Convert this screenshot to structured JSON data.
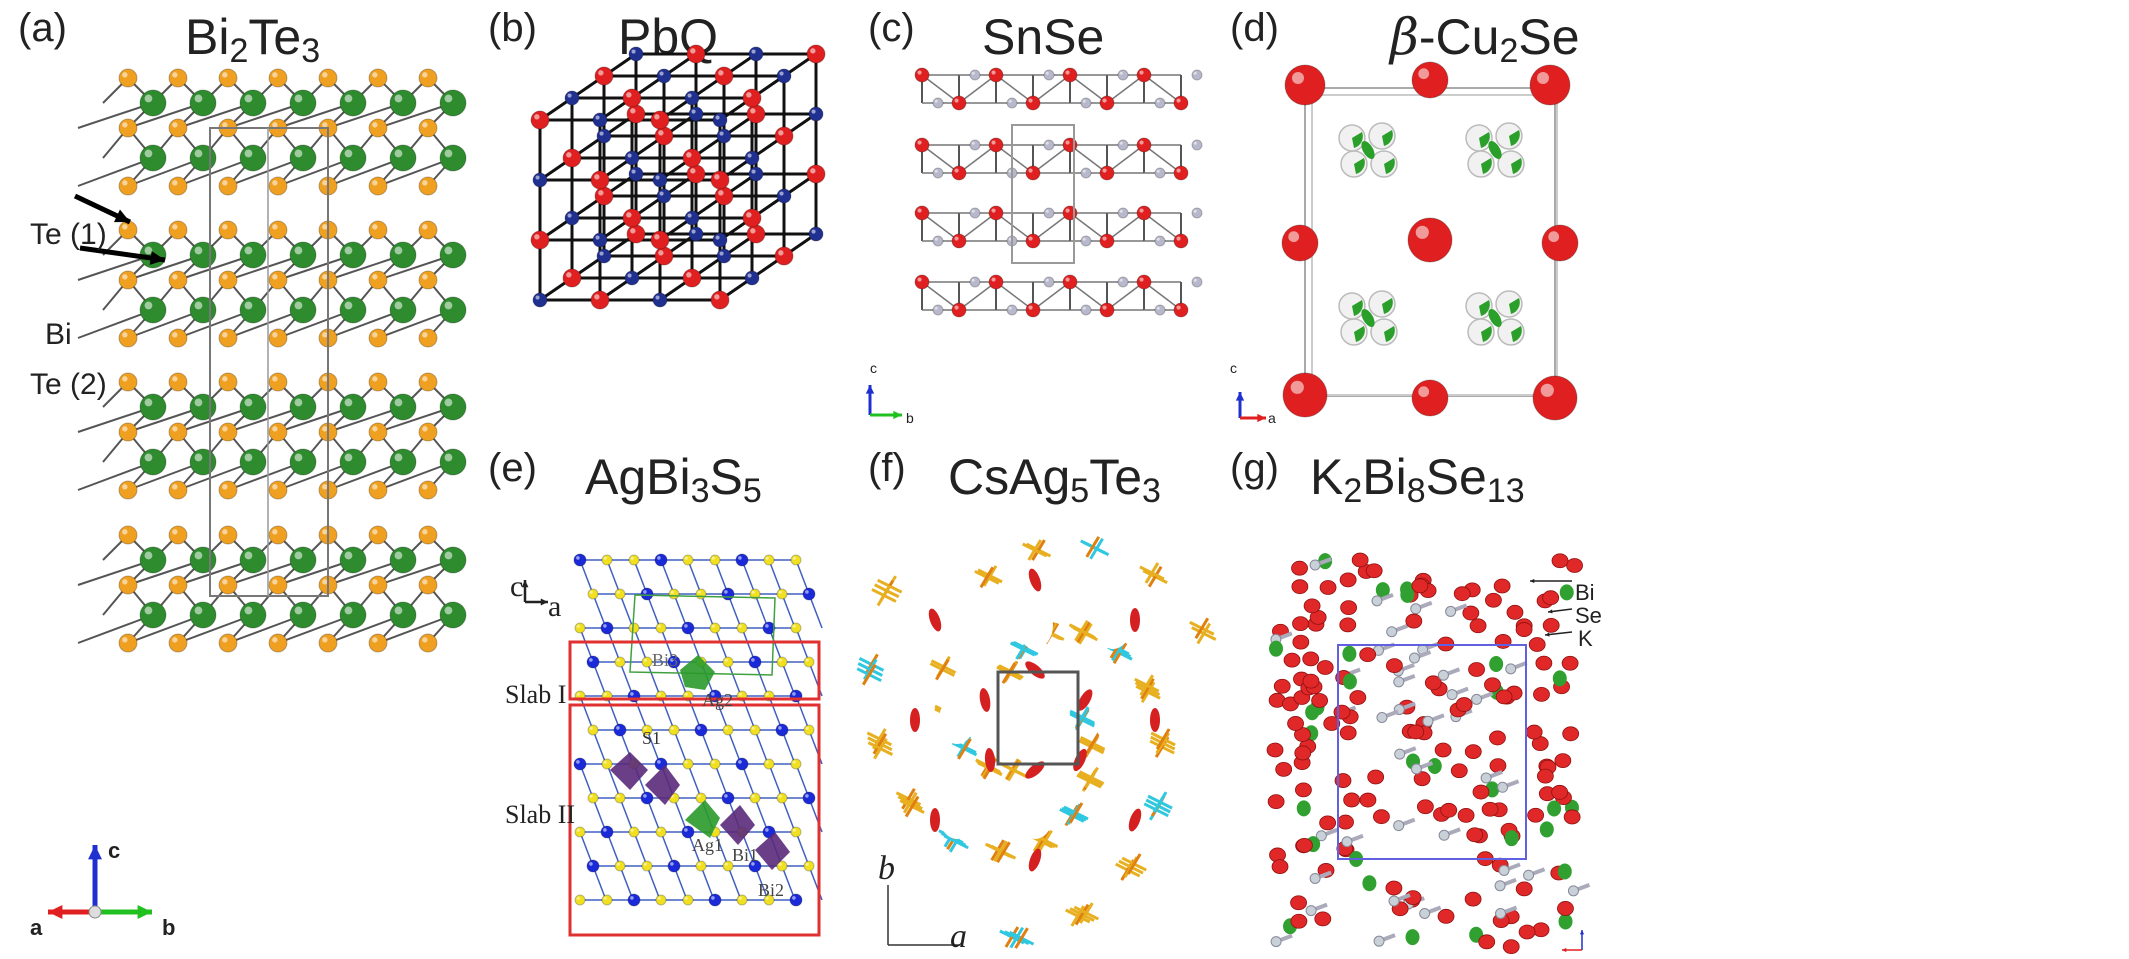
{
  "panels": {
    "a": {
      "label": "(a)",
      "title_main": "Bi",
      "title_sub1": "2",
      "title_main2": "Te",
      "title_sub2": "3",
      "annotations": {
        "te1": "Te (1)",
        "bi": "Bi",
        "te2": "Te (2)"
      },
      "axes": {
        "a": "a",
        "b": "b",
        "c": "c"
      }
    },
    "b": {
      "label": "(b)",
      "title": "PbQ"
    },
    "c": {
      "label": "(c)",
      "title": "SnSe",
      "axes": {
        "b": "b",
        "c": "c"
      }
    },
    "d": {
      "label": "(d)",
      "title_greek": "β",
      "title_main": "-Cu",
      "title_sub1": "2",
      "title_main2": "Se",
      "axes": {
        "a": "a",
        "c": "c"
      }
    },
    "e": {
      "label": "(e)",
      "title_main": "AgBi",
      "title_sub1": "3",
      "title_main2": "S",
      "title_sub2": "5",
      "annotations": {
        "slab1": "Slab I",
        "slab2": "Slab II",
        "bi3": "Bi3",
        "s1": "S1",
        "ag1": "Ag1",
        "ag2": "Ag2",
        "bi1": "Bi1",
        "bi2": "Bi2"
      },
      "axes": {
        "a": "a",
        "c": "c"
      }
    },
    "f": {
      "label": "(f)",
      "title_main": "CsAg",
      "title_sub1": "5",
      "title_main2": "Te",
      "title_sub2": "3",
      "axes": {
        "a": "a",
        "b": "b"
      }
    },
    "g": {
      "label": "(g)",
      "title_main": "K",
      "title_sub1": "2",
      "title_main2": "Bi",
      "title_sub2": "8",
      "title_main3": "Se",
      "title_sub3": "13",
      "annotations": {
        "bi": "Bi",
        "se": "Se",
        "k": "K"
      }
    }
  },
  "colors": {
    "te": "#f0a020",
    "bi": "#2e8b2e",
    "red": "#e02020",
    "blue": "#203090",
    "grey_atom": "#b8b8cc",
    "cyan": "#30c8e0",
    "gold": "#e8b020"
  }
}
